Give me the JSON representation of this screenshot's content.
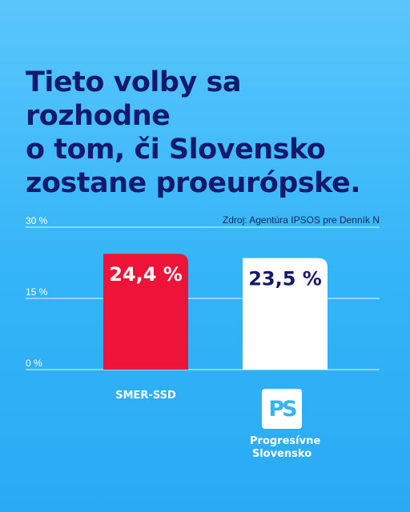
{
  "headline": {
    "lines": [
      "Tieto volby sa rozhodne",
      "o tom, či Slovensko",
      "zostane proeurópske."
    ]
  },
  "colors": {
    "background": "#33b4f8",
    "headline": "#141a6b",
    "smer_bar": "#ee1439",
    "ps_bar": "#ffffff",
    "ps_value_text": "#141a6b",
    "gridline": "#e6f6ff"
  },
  "logo": {
    "letters": "PS",
    "icon": "progresivne-slovensko-logo",
    "name_lines": [
      "Progresívne",
      "Slovensko"
    ]
  },
  "chart_data": {
    "type": "bar",
    "source": "Zdroj: Agentúra IPSOS pre Denník N",
    "categories": [
      "SMER-SSD",
      "Progresívne Slovensko"
    ],
    "values": [
      24.4,
      23.5
    ],
    "value_labels": [
      "24,4 %",
      "23,5 %"
    ],
    "bar_colors": [
      "#ee1439",
      "#ffffff"
    ],
    "value_label_colors": [
      "#ffffff",
      "#141a6b"
    ],
    "ylim": [
      0,
      30
    ],
    "yticks": [
      0,
      15,
      30
    ],
    "ytick_labels": [
      "0 %",
      "15 %",
      "30 %"
    ],
    "grid": true,
    "xlabel": "",
    "ylabel": ""
  }
}
